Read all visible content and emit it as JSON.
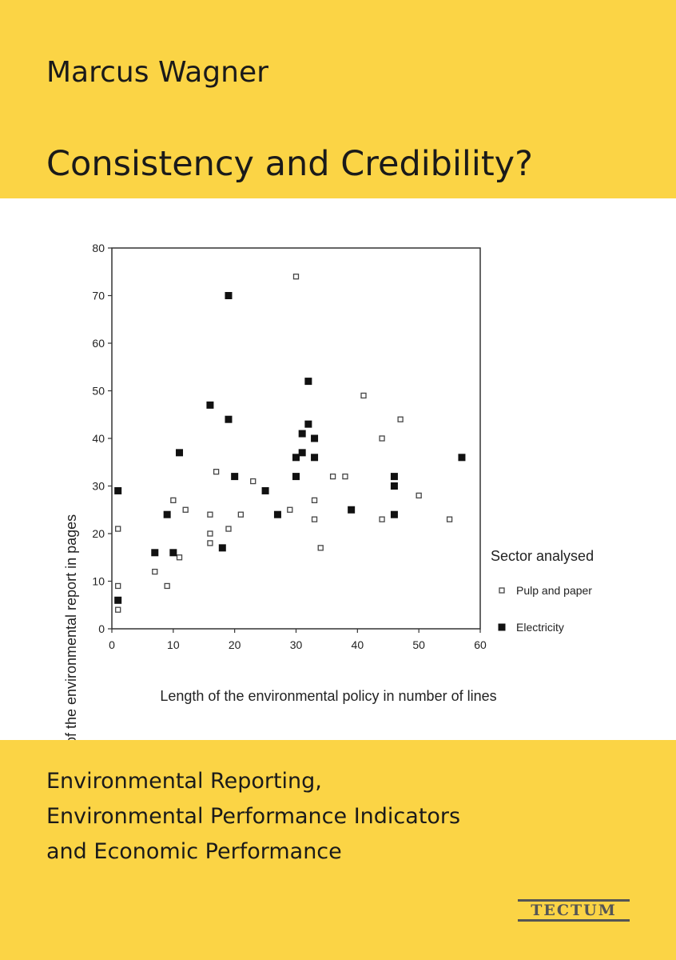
{
  "cover": {
    "author": "Marcus Wagner",
    "title": "Consistency and Credibility?",
    "subtitle_lines": [
      "Environmental Reporting,",
      "Environmental Performance Indicators",
      "and Economic Performance"
    ],
    "publisher": "TECTUM",
    "accent_color": "#fbd445"
  },
  "chart_data": {
    "type": "scatter",
    "title": "",
    "xlabel": "Length of the environmental policy in number of lines",
    "ylabel": "Length of the environmental report in pages",
    "xlim": [
      0,
      60
    ],
    "ylim": [
      0,
      80
    ],
    "x_ticks": [
      0,
      10,
      20,
      30,
      40,
      50,
      60
    ],
    "y_ticks": [
      0,
      10,
      20,
      30,
      40,
      50,
      60,
      70,
      80
    ],
    "grid": false,
    "legend_title": "Sector analysed",
    "legend_position": "right",
    "series": [
      {
        "name": "Pulp and paper",
        "marker": "hollow-square",
        "points": [
          [
            30,
            74
          ],
          [
            41,
            49
          ],
          [
            47,
            44
          ],
          [
            44,
            40
          ],
          [
            17,
            33
          ],
          [
            23,
            31
          ],
          [
            36,
            32
          ],
          [
            38,
            32
          ],
          [
            50,
            28
          ],
          [
            10,
            27
          ],
          [
            33,
            27
          ],
          [
            12,
            25
          ],
          [
            29,
            25
          ],
          [
            16,
            24
          ],
          [
            21,
            24
          ],
          [
            33,
            23
          ],
          [
            44,
            23
          ],
          [
            55,
            23
          ],
          [
            1,
            21
          ],
          [
            16,
            20
          ],
          [
            19,
            21
          ],
          [
            16,
            18
          ],
          [
            11,
            15
          ],
          [
            34,
            17
          ],
          [
            7,
            12
          ],
          [
            9,
            9
          ],
          [
            1,
            9
          ],
          [
            1,
            4
          ]
        ]
      },
      {
        "name": "Electricity",
        "marker": "filled-square",
        "points": [
          [
            19,
            70
          ],
          [
            32,
            52
          ],
          [
            16,
            47
          ],
          [
            19,
            44
          ],
          [
            32,
            43
          ],
          [
            31,
            41
          ],
          [
            33,
            40
          ],
          [
            11,
            37
          ],
          [
            30,
            36
          ],
          [
            31,
            37
          ],
          [
            33,
            36
          ],
          [
            57,
            36
          ],
          [
            20,
            32
          ],
          [
            30,
            32
          ],
          [
            46,
            32
          ],
          [
            1,
            29
          ],
          [
            25,
            29
          ],
          [
            46,
            30
          ],
          [
            39,
            25
          ],
          [
            9,
            24
          ],
          [
            27,
            24
          ],
          [
            46,
            24
          ],
          [
            7,
            16
          ],
          [
            10,
            16
          ],
          [
            18,
            17
          ],
          [
            1,
            6
          ]
        ]
      }
    ]
  }
}
